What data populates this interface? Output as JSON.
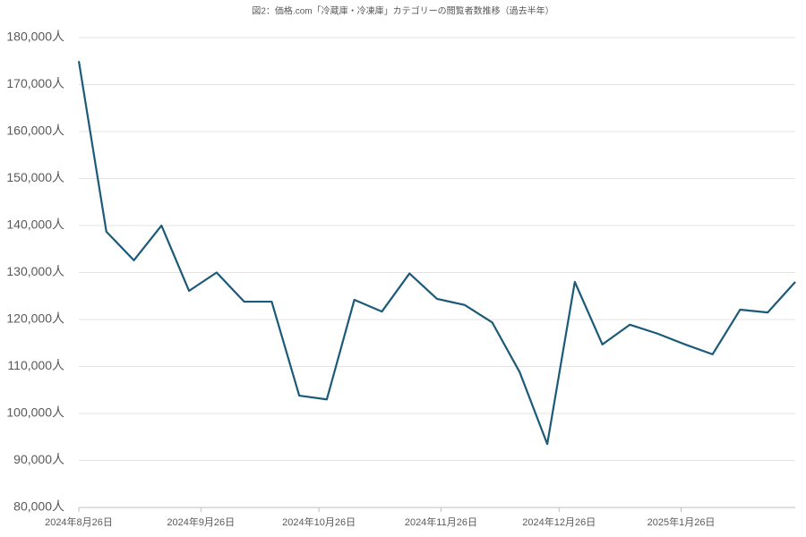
{
  "chart_data": {
    "type": "line",
    "title": "図2：価格.com「冷蔵庫・冷凍庫」カテゴリーの閲覧者数推移（過去半年）",
    "x": [
      "2024-08-26",
      "2024-09-02",
      "2024-09-09",
      "2024-09-16",
      "2024-09-23",
      "2024-09-30",
      "2024-10-07",
      "2024-10-14",
      "2024-10-21",
      "2024-10-28",
      "2024-11-04",
      "2024-11-11",
      "2024-11-18",
      "2024-11-25",
      "2024-12-02",
      "2024-12-09",
      "2024-12-16",
      "2024-12-23",
      "2024-12-30",
      "2025-01-06",
      "2025-01-13",
      "2025-01-20",
      "2025-01-27",
      "2025-02-03",
      "2025-02-10",
      "2025-02-17",
      "2025-02-24"
    ],
    "values": [
      175000,
      138700,
      132600,
      140000,
      126100,
      130000,
      123800,
      123800,
      103800,
      103000,
      124200,
      121700,
      129800,
      124400,
      123100,
      119400,
      108800,
      93500,
      128000,
      114700,
      118900,
      117000,
      114700,
      112600,
      122100,
      121500,
      128000
    ],
    "color": "#1b5a78",
    "xlim": [
      "2024-08-26",
      "2025-02-24"
    ],
    "xticks": [
      {
        "value": "2024-08-26",
        "label": "2024年8月26日"
      },
      {
        "value": "2024-09-26",
        "label": "2024年9月26日"
      },
      {
        "value": "2024-10-26",
        "label": "2024年10月26日"
      },
      {
        "value": "2024-11-26",
        "label": "2024年11月26日"
      },
      {
        "value": "2024-12-26",
        "label": "2024年12月26日"
      },
      {
        "value": "2025-01-26",
        "label": "2025年1月26日"
      }
    ],
    "ylim": [
      80000,
      180000
    ],
    "yticks": [
      {
        "value": 80000,
        "label": "80,000人"
      },
      {
        "value": 90000,
        "label": "90,000人"
      },
      {
        "value": 100000,
        "label": "100,000人"
      },
      {
        "value": 110000,
        "label": "110,000人"
      },
      {
        "value": 120000,
        "label": "120,000人"
      },
      {
        "value": 130000,
        "label": "130,000人"
      },
      {
        "value": 140000,
        "label": "140,000人"
      },
      {
        "value": 150000,
        "label": "150,000人"
      },
      {
        "value": 160000,
        "label": "160,000人"
      },
      {
        "value": 170000,
        "label": "170,000人"
      },
      {
        "value": 180000,
        "label": "180,000人"
      }
    ],
    "grid": true
  }
}
